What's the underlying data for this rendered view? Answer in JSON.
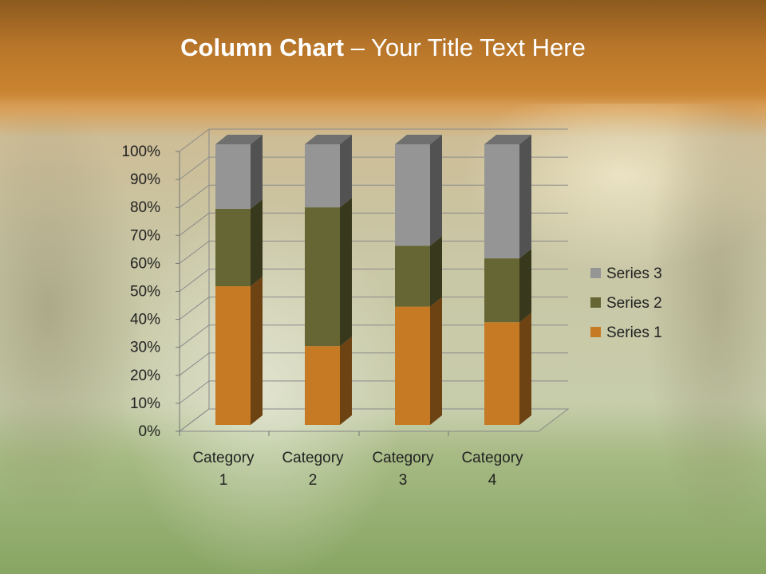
{
  "slide": {
    "title_bold": "Column Chart",
    "title_rest": " – Your Title Text Here"
  },
  "chart_data": {
    "type": "bar",
    "stacked": "percent",
    "three_d": true,
    "categories": [
      "Category 1",
      "Category 2",
      "Category 3",
      "Category 4"
    ],
    "category_label_lines": [
      [
        "Category",
        "1"
      ],
      [
        "Category",
        "2"
      ],
      [
        "Category",
        "3"
      ],
      [
        "Category",
        "4"
      ]
    ],
    "series": [
      {
        "name": "Series 1",
        "values": [
          4.3,
          2.5,
          3.5,
          4.5
        ],
        "color": "#c77a24"
      },
      {
        "name": "Series 2",
        "values": [
          2.4,
          4.4,
          1.8,
          2.8
        ],
        "color": "#656633"
      },
      {
        "name": "Series 3",
        "values": [
          2,
          2,
          3,
          5
        ],
        "color": "#959595"
      }
    ],
    "ytick_labels": [
      "0%",
      "10%",
      "20%",
      "30%",
      "40%",
      "50%",
      "60%",
      "70%",
      "80%",
      "90%",
      "100%"
    ],
    "ylim": [
      0,
      100
    ],
    "grid": true,
    "legend": "right"
  }
}
